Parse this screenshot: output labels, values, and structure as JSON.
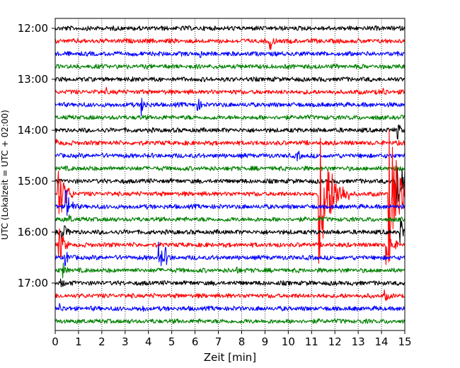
{
  "chart_data": {
    "type": "line",
    "title": "",
    "xlabel": "Zeit  [min]",
    "ylabel": "UTC (Lokalzeit = UTC + 02:00)",
    "xlim": [
      0,
      15
    ],
    "x_ticks": [
      "0",
      "1",
      "2",
      "3",
      "4",
      "5",
      "6",
      "7",
      "8",
      "9",
      "10",
      "11",
      "12",
      "13",
      "14",
      "15"
    ],
    "y_ticks": [
      "12:00",
      "13:00",
      "14:00",
      "15:00",
      "16:00",
      "17:00"
    ],
    "grid": "vertical dotted lines at each minute",
    "trace_interval_min": 15,
    "trace_colors": [
      "#000000",
      "#ff0000",
      "#0000ff",
      "#008000"
    ],
    "traces": [
      {
        "start": "12:00",
        "color": "#000000",
        "events": []
      },
      {
        "start": "12:15",
        "color": "#ff0000",
        "events": [
          {
            "t": 9.2,
            "amp": 1.0
          }
        ]
      },
      {
        "start": "12:30",
        "color": "#0000ff",
        "events": [
          {
            "t": 6.2,
            "amp": 0.35
          }
        ]
      },
      {
        "start": "12:45",
        "color": "#008000",
        "events": []
      },
      {
        "start": "13:00",
        "color": "#000000",
        "events": []
      },
      {
        "start": "13:15",
        "color": "#ff0000",
        "events": [
          {
            "t": 2.2,
            "amp": 0.3
          },
          {
            "t": 14.1,
            "amp": 0.4
          }
        ]
      },
      {
        "start": "13:30",
        "color": "#0000ff",
        "events": [
          {
            "t": 3.7,
            "amp": 1.0
          },
          {
            "t": 6.1,
            "amp": 0.7
          }
        ]
      },
      {
        "start": "13:45",
        "color": "#008000",
        "events": []
      },
      {
        "start": "14:00",
        "color": "#000000",
        "events": [
          {
            "t": 14.7,
            "amp": 0.8
          }
        ]
      },
      {
        "start": "14:15",
        "color": "#ff0000",
        "events": [
          {
            "t": 0.05,
            "amp": 0.4
          }
        ]
      },
      {
        "start": "14:30",
        "color": "#0000ff",
        "events": [
          {
            "t": 10.4,
            "amp": 0.5
          }
        ]
      },
      {
        "start": "14:45",
        "color": "#008000",
        "events": []
      },
      {
        "start": "15:00",
        "color": "#000000",
        "events": [
          {
            "t": 14.6,
            "amp": 4.5
          }
        ]
      },
      {
        "start": "15:15",
        "color": "#ff0000",
        "events": [
          {
            "t": 0.1,
            "amp": 3.5
          },
          {
            "t": 11.3,
            "amp": 7.5
          },
          {
            "t": 14.3,
            "amp": 7.5
          }
        ]
      },
      {
        "start": "15:30",
        "color": "#0000ff",
        "events": [
          {
            "t": 0.45,
            "amp": 2.0
          }
        ]
      },
      {
        "start": "15:45",
        "color": "#008000",
        "events": [
          {
            "t": 0.6,
            "amp": 0.4
          }
        ]
      },
      {
        "start": "16:00",
        "color": "#000000",
        "events": [
          {
            "t": 0.3,
            "amp": 1.2
          },
          {
            "t": 14.8,
            "amp": 1.5
          }
        ]
      },
      {
        "start": "16:15",
        "color": "#ff0000",
        "events": [
          {
            "t": 0.15,
            "amp": 2.0
          },
          {
            "t": 14.2,
            "amp": 2.2
          }
        ]
      },
      {
        "start": "16:30",
        "color": "#0000ff",
        "events": [
          {
            "t": 0.4,
            "amp": 1.0
          },
          {
            "t": 4.45,
            "amp": 1.5
          },
          {
            "t": 4.7,
            "amp": 0.9
          }
        ]
      },
      {
        "start": "16:45",
        "color": "#008000",
        "events": [
          {
            "t": 0.35,
            "amp": 0.6
          },
          {
            "t": 7.8,
            "amp": 0.3
          }
        ]
      },
      {
        "start": "17:00",
        "color": "#000000",
        "events": [
          {
            "t": 0.25,
            "amp": 0.5
          }
        ]
      },
      {
        "start": "17:15",
        "color": "#ff0000",
        "events": [
          {
            "t": 14.15,
            "amp": 0.5
          }
        ]
      },
      {
        "start": "17:30",
        "color": "#0000ff",
        "events": [
          {
            "t": 0.2,
            "amp": 0.4
          },
          {
            "t": 3.7,
            "amp": 0.35
          }
        ]
      },
      {
        "start": "17:45",
        "color": "#008000",
        "events": []
      }
    ]
  }
}
